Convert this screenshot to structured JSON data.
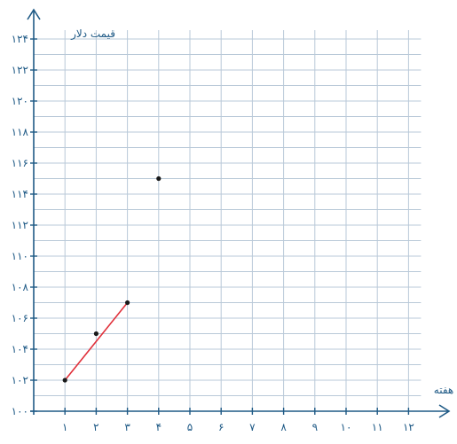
{
  "chart_data": {
    "type": "scatter",
    "title": "",
    "xlabel": "هفته",
    "ylabel": "قیمت دلار",
    "x_ticks": [
      {
        "value": 1,
        "label": "۱"
      },
      {
        "value": 2,
        "label": "۲"
      },
      {
        "value": 3,
        "label": "۳"
      },
      {
        "value": 4,
        "label": "۴"
      },
      {
        "value": 5,
        "label": "۵"
      },
      {
        "value": 6,
        "label": "۶"
      },
      {
        "value": 7,
        "label": "۷"
      },
      {
        "value": 8,
        "label": "۸"
      },
      {
        "value": 9,
        "label": "۹"
      },
      {
        "value": 10,
        "label": "۱۰"
      },
      {
        "value": 11,
        "label": "۱۱"
      },
      {
        "value": 12,
        "label": "۱۲"
      }
    ],
    "y_ticks": [
      {
        "value": 100,
        "label": "۱۰۰"
      },
      {
        "value": 102,
        "label": "۱۰۲"
      },
      {
        "value": 104,
        "label": "۱۰۴"
      },
      {
        "value": 106,
        "label": "۱۰۶"
      },
      {
        "value": 108,
        "label": "۱۰۸"
      },
      {
        "value": 110,
        "label": "۱۱۰"
      },
      {
        "value": 112,
        "label": "۱۱۲"
      },
      {
        "value": 114,
        "label": "۱۱۴"
      },
      {
        "value": 116,
        "label": "۱۱۶"
      },
      {
        "value": 118,
        "label": "۱۱۸"
      },
      {
        "value": 120,
        "label": "۱۲۰"
      },
      {
        "value": 122,
        "label": "۱۲۲"
      },
      {
        "value": 124,
        "label": "۱۲۴"
      }
    ],
    "xlim": [
      0,
      12
    ],
    "ylim": [
      100,
      124
    ],
    "grid": true,
    "points": [
      {
        "x": 1,
        "y": 102
      },
      {
        "x": 2,
        "y": 105
      },
      {
        "x": 3,
        "y": 107
      },
      {
        "x": 4,
        "y": 115
      }
    ],
    "segment": {
      "from": [
        1,
        102
      ],
      "to": [
        3,
        107
      ],
      "color": "#e0303a"
    },
    "colors": {
      "axis": "#1f5a86",
      "grid": "#b9c9d8",
      "point": "#1a1a1a"
    }
  }
}
